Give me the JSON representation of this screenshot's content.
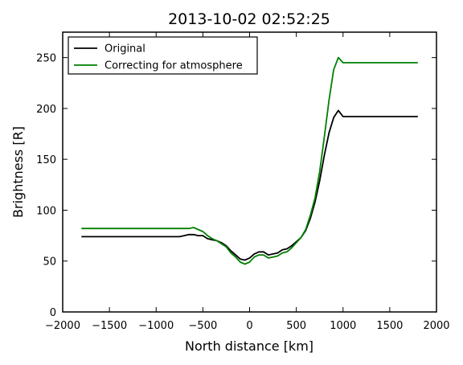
{
  "chart_data": {
    "type": "line",
    "title": "2013-10-02 02:52:25",
    "xlabel": "North distance [km]",
    "ylabel": "Brightness [R]",
    "xlim": [
      -2000,
      2000
    ],
    "ylim": [
      0,
      275
    ],
    "xticks": [
      -2000,
      -1500,
      -1000,
      -500,
      0,
      500,
      1000,
      1500,
      2000
    ],
    "xtick_labels": [
      "−2000",
      "−1500",
      "−1000",
      "−500",
      "0",
      "500",
      "1000",
      "1500",
      "2000"
    ],
    "yticks": [
      0,
      50,
      100,
      150,
      200,
      250
    ],
    "ytick_labels": [
      "0",
      "50",
      "100",
      "150",
      "200",
      "250"
    ],
    "grid": false,
    "legend": "top-left",
    "series": [
      {
        "name": "Original",
        "color": "#000000",
        "x": [
          -1800,
          -1500,
          -1000,
          -750,
          -700,
          -650,
          -600,
          -550,
          -500,
          -450,
          -400,
          -350,
          -300,
          -250,
          -200,
          -150,
          -100,
          -50,
          0,
          50,
          100,
          150,
          200,
          250,
          300,
          350,
          400,
          450,
          500,
          550,
          600,
          650,
          700,
          750,
          800,
          850,
          900,
          950,
          1000,
          1100,
          1300,
          1500,
          1800
        ],
        "y": [
          74,
          74,
          74,
          74,
          75,
          76,
          76,
          75,
          75,
          72,
          71,
          70,
          68,
          65,
          60,
          56,
          52,
          51,
          53,
          57,
          59,
          59,
          56,
          57,
          58,
          61,
          62,
          65,
          69,
          73,
          80,
          92,
          108,
          129,
          154,
          176,
          191,
          198,
          192,
          192,
          192,
          192,
          192
        ]
      },
      {
        "name": "Correcting for atmosphere",
        "color": "#008000",
        "x": [
          -1800,
          -1500,
          -1000,
          -750,
          -700,
          -650,
          -600,
          -550,
          -500,
          -450,
          -400,
          -350,
          -300,
          -250,
          -200,
          -150,
          -100,
          -50,
          0,
          50,
          100,
          150,
          200,
          250,
          300,
          350,
          400,
          450,
          500,
          550,
          600,
          650,
          700,
          750,
          800,
          850,
          900,
          950,
          1000,
          1100,
          1300,
          1500,
          1800
        ],
        "y": [
          82,
          82,
          82,
          82,
          82,
          82,
          83,
          81,
          79,
          75,
          72,
          70,
          67,
          64,
          58,
          54,
          49,
          47,
          49,
          54,
          56,
          56,
          53,
          54,
          55,
          58,
          59,
          63,
          68,
          73,
          81,
          95,
          112,
          138,
          172,
          208,
          238,
          250,
          245,
          245,
          245,
          245,
          245
        ]
      }
    ]
  }
}
